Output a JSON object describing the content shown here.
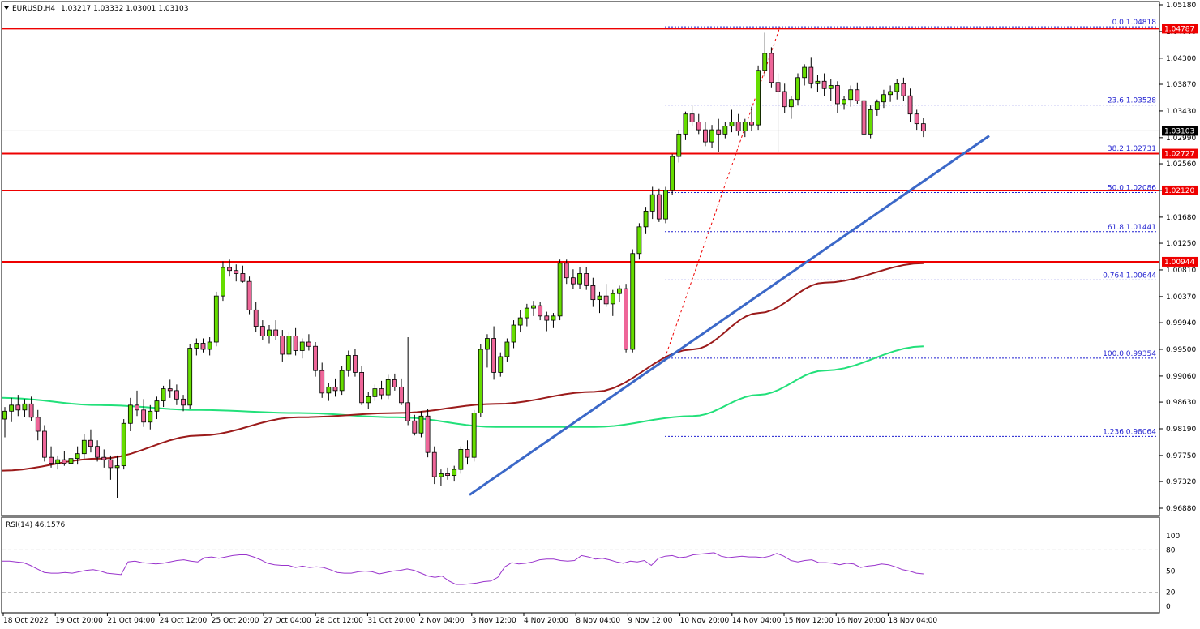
{
  "colors": {
    "background": "#ffffff",
    "bull_candle": "#66dd00",
    "bear_candle": "#ee6699",
    "wick": "#000000",
    "resistance_line": "#ee0000",
    "trend_line": "#3b68c8",
    "ma_fast": "#9b1b1b",
    "ma_slow": "#22e07a",
    "fib": "#1f1fd0",
    "rsi_line": "#9933cc",
    "price_marker_bg": "#000000",
    "level_marker_bg": "#ee0000"
  },
  "chart_data": [
    {
      "type": "candlestick",
      "title": "EURUSD,H4  1.03217 1.03332 1.03001 1.03103",
      "symbol": "EURUSD,H4",
      "ohlc_header": "1.03217 1.03332 1.03001 1.03103",
      "ylim": [
        0.968,
        1.0518
      ],
      "y_ticks": [
        "1.05180",
        "1.04740",
        "1.04300",
        "1.03870",
        "1.03430",
        "1.02990",
        "1.02560",
        "1.02120",
        "1.01680",
        "1.01250",
        "1.00810",
        "1.00370",
        "0.99940",
        "0.99500",
        "0.99060",
        "0.98630",
        "0.98190",
        "0.97750",
        "0.97320",
        "0.96880"
      ],
      "x_ticks": [
        "18 Oct 2022",
        "19 Oct 20:00",
        "21 Oct 04:00",
        "24 Oct 12:00",
        "25 Oct 20:00",
        "27 Oct 04:00",
        "28 Oct 12:00",
        "31 Oct 20:00",
        "2 Nov 04:00",
        "3 Nov 12:00",
        "4 Nov 20:00",
        "8 Nov 04:00",
        "9 Nov 12:00",
        "10 Nov 20:00",
        "14 Nov 04:00",
        "15 Nov 12:00",
        "16 Nov 20:00",
        "18 Nov 04:00"
      ],
      "candles": [
        [
          0.9835,
          0.9855,
          0.9805,
          0.9848
        ],
        [
          0.9848,
          0.987,
          0.983,
          0.9858
        ],
        [
          0.9858,
          0.9875,
          0.984,
          0.985
        ],
        [
          0.985,
          0.9868,
          0.9838,
          0.986
        ],
        [
          0.986,
          0.9872,
          0.9832,
          0.9838
        ],
        [
          0.9838,
          0.985,
          0.98,
          0.9815
        ],
        [
          0.9815,
          0.9825,
          0.9765,
          0.9772
        ],
        [
          0.9772,
          0.979,
          0.9755,
          0.9762
        ],
        [
          0.9762,
          0.9775,
          0.9752,
          0.9768
        ],
        [
          0.9768,
          0.9782,
          0.9758,
          0.9762
        ],
        [
          0.9762,
          0.9778,
          0.9752,
          0.977
        ],
        [
          0.977,
          0.979,
          0.976,
          0.9778
        ],
        [
          0.9778,
          0.981,
          0.977,
          0.98
        ],
        [
          0.98,
          0.9818,
          0.978,
          0.979
        ],
        [
          0.979,
          0.98,
          0.9765,
          0.9772
        ],
        [
          0.9772,
          0.9785,
          0.9755,
          0.9768
        ],
        [
          0.9768,
          0.9775,
          0.9735,
          0.9755
        ],
        [
          0.9755,
          0.9775,
          0.9705,
          0.9758
        ],
        [
          0.9758,
          0.9835,
          0.9752,
          0.9828
        ],
        [
          0.9828,
          0.987,
          0.9815,
          0.9858
        ],
        [
          0.9858,
          0.9882,
          0.984,
          0.985
        ],
        [
          0.985,
          0.9868,
          0.9822,
          0.983
        ],
        [
          0.983,
          0.9858,
          0.9818,
          0.9848
        ],
        [
          0.9848,
          0.9872,
          0.9835,
          0.9865
        ],
        [
          0.9865,
          0.989,
          0.9855,
          0.9885
        ],
        [
          0.9885,
          0.99,
          0.987,
          0.9882
        ],
        [
          0.9882,
          0.9892,
          0.9858,
          0.9868
        ],
        [
          0.9868,
          0.9875,
          0.9848,
          0.9858
        ],
        [
          0.9858,
          0.9958,
          0.9852,
          0.9952
        ],
        [
          0.9952,
          0.9968,
          0.994,
          0.996
        ],
        [
          0.996,
          0.9968,
          0.9945,
          0.995
        ],
        [
          0.995,
          0.997,
          0.994,
          0.9962
        ],
        [
          0.9962,
          1.0045,
          0.9955,
          1.0038
        ],
        [
          1.0038,
          1.0095,
          1.003,
          1.0085
        ],
        [
          1.0085,
          1.0098,
          1.007,
          1.008
        ],
        [
          1.008,
          1.009,
          1.0062,
          1.0075
        ],
        [
          1.0075,
          1.0088,
          1.006,
          1.0062
        ],
        [
          1.0062,
          1.007,
          1.0008,
          1.0015
        ],
        [
          1.0015,
          1.0028,
          0.9978,
          0.9988
        ],
        [
          0.9988,
          0.9998,
          0.9965,
          0.9972
        ],
        [
          0.9972,
          0.999,
          0.996,
          0.9982
        ],
        [
          0.9982,
          0.9998,
          0.9965,
          0.9972
        ],
        [
          0.9972,
          0.9982,
          0.993,
          0.9942
        ],
        [
          0.9942,
          0.9978,
          0.9938,
          0.9972
        ],
        [
          0.9972,
          0.9985,
          0.994,
          0.9948
        ],
        [
          0.9948,
          0.9968,
          0.9935,
          0.9962
        ],
        [
          0.9962,
          0.9975,
          0.9948,
          0.9955
        ],
        [
          0.9955,
          0.9962,
          0.9905,
          0.9915
        ],
        [
          0.9915,
          0.9928,
          0.987,
          0.9878
        ],
        [
          0.9878,
          0.9895,
          0.9865,
          0.9888
        ],
        [
          0.9888,
          0.9902,
          0.9872,
          0.9882
        ],
        [
          0.9882,
          0.9922,
          0.9875,
          0.9915
        ],
        [
          0.9915,
          0.9948,
          0.9905,
          0.994
        ],
        [
          0.994,
          0.995,
          0.9905,
          0.9912
        ],
        [
          0.9912,
          0.9922,
          0.9858,
          0.9862
        ],
        [
          0.9862,
          0.988,
          0.9852,
          0.9872
        ],
        [
          0.9872,
          0.9892,
          0.9865,
          0.9885
        ],
        [
          0.9885,
          0.9898,
          0.9868,
          0.9875
        ],
        [
          0.9875,
          0.9908,
          0.9868,
          0.99
        ],
        [
          0.99,
          0.991,
          0.9882,
          0.9888
        ],
        [
          0.9888,
          0.9902,
          0.9858,
          0.9862
        ],
        [
          0.9862,
          0.997,
          0.9825,
          0.9832
        ],
        [
          0.9832,
          0.9842,
          0.9808,
          0.9812
        ],
        [
          0.9812,
          0.9848,
          0.9805,
          0.984
        ],
        [
          0.984,
          0.9852,
          0.9772,
          0.978
        ],
        [
          0.978,
          0.979,
          0.9728,
          0.974
        ],
        [
          0.974,
          0.9752,
          0.9725,
          0.9745
        ],
        [
          0.9745,
          0.9755,
          0.9735,
          0.9742
        ],
        [
          0.9742,
          0.9758,
          0.9732,
          0.9752
        ],
        [
          0.9752,
          0.979,
          0.9745,
          0.9785
        ],
        [
          0.9785,
          0.98,
          0.976,
          0.9772
        ],
        [
          0.9772,
          0.985,
          0.9765,
          0.9845
        ],
        [
          0.9845,
          0.9958,
          0.9838,
          0.995
        ],
        [
          0.995,
          0.9975,
          0.992,
          0.9968
        ],
        [
          0.9968,
          0.9988,
          0.99,
          0.9912
        ],
        [
          0.9912,
          0.9945,
          0.9905,
          0.9938
        ],
        [
          0.9938,
          0.9968,
          0.993,
          0.9962
        ],
        [
          0.9962,
          0.9998,
          0.9952,
          0.999
        ],
        [
          0.999,
          1.0015,
          0.9978,
          1.0002
        ],
        [
          1.0002,
          1.0025,
          0.9988,
          1.0018
        ],
        [
          1.0018,
          1.003,
          1.0005,
          1.0022
        ],
        [
          1.0022,
          1.0028,
          0.9998,
          1.0005
        ],
        [
          1.0005,
          1.0012,
          0.998,
          0.9998
        ],
        [
          0.9998,
          1.001,
          0.9985,
          1.0005
        ],
        [
          1.0005,
          1.0098,
          0.9998,
          1.0092
        ],
        [
          1.0092,
          1.0098,
          1.0058,
          1.0068
        ],
        [
          1.0068,
          1.0082,
          1.005,
          1.0058
        ],
        [
          1.0058,
          1.0085,
          1.005,
          1.0075
        ],
        [
          1.0075,
          1.0085,
          1.0048,
          1.0055
        ],
        [
          1.0055,
          1.0068,
          1.002,
          1.0032
        ],
        [
          1.0032,
          1.0045,
          1.001,
          1.0038
        ],
        [
          1.0038,
          1.0058,
          1.002,
          1.0025
        ],
        [
          1.0025,
          1.0048,
          1.0005,
          1.0042
        ],
        [
          1.0042,
          1.0055,
          1.0028,
          1.005
        ],
        [
          1.005,
          1.0058,
          0.9945,
          0.995
        ],
        [
          0.995,
          1.0115,
          0.9945,
          1.0108
        ],
        [
          1.0108,
          1.0158,
          1.0098,
          1.0152
        ],
        [
          1.0152,
          1.0185,
          1.014,
          1.0178
        ],
        [
          1.0178,
          1.0218,
          1.0165,
          1.0205
        ],
        [
          1.0205,
          1.0215,
          1.016,
          1.0165
        ],
        [
          1.0165,
          1.0218,
          1.0158,
          1.0212
        ],
        [
          1.0212,
          1.0272,
          1.0205,
          1.0268
        ],
        [
          1.0268,
          1.0312,
          1.0258,
          1.0305
        ],
        [
          1.0305,
          1.0342,
          1.0295,
          1.0338
        ],
        [
          1.0338,
          1.0352,
          1.0318,
          1.0325
        ],
        [
          1.0325,
          1.0338,
          1.0305,
          1.0312
        ],
        [
          1.0312,
          1.0325,
          1.0285,
          1.0292
        ],
        [
          1.0292,
          1.032,
          1.0282,
          1.0312
        ],
        [
          1.0312,
          1.033,
          1.0275,
          1.0305
        ],
        [
          1.0305,
          1.0325,
          1.0298,
          1.0318
        ],
        [
          1.0318,
          1.0345,
          1.0308,
          1.0325
        ],
        [
          1.0325,
          1.0338,
          1.0302,
          1.031
        ],
        [
          1.031,
          1.033,
          1.03,
          1.0325
        ],
        [
          1.0325,
          1.035,
          1.031,
          1.032
        ],
        [
          1.032,
          1.0418,
          1.0312,
          1.041
        ],
        [
          1.041,
          1.0472,
          1.04,
          1.0438
        ],
        [
          1.0438,
          1.0448,
          1.0382,
          1.039
        ],
        [
          1.039,
          1.0405,
          1.0275,
          1.0375
        ],
        [
          1.0375,
          1.0388,
          1.034,
          1.035
        ],
        [
          1.035,
          1.0368,
          1.033,
          1.0362
        ],
        [
          1.0362,
          1.0405,
          1.0352,
          1.0398
        ],
        [
          1.0398,
          1.042,
          1.0385,
          1.0415
        ],
        [
          1.0415,
          1.0432,
          1.038,
          1.0388
        ],
        [
          1.0388,
          1.0402,
          1.0375,
          1.0392
        ],
        [
          1.0392,
          1.0405,
          1.0368,
          1.038
        ],
        [
          1.038,
          1.0395,
          1.036,
          1.0385
        ],
        [
          1.0385,
          1.0392,
          1.034,
          1.0355
        ],
        [
          1.0355,
          1.0368,
          1.0345,
          1.0362
        ],
        [
          1.0362,
          1.0385,
          1.035,
          1.0378
        ],
        [
          1.0378,
          1.039,
          1.0355,
          1.036
        ],
        [
          1.036,
          1.0365,
          1.03,
          1.0305
        ],
        [
          1.0305,
          1.0352,
          1.0298,
          1.0345
        ],
        [
          1.0345,
          1.0362,
          1.0335,
          1.0358
        ],
        [
          1.0358,
          1.0378,
          1.0348,
          1.037
        ],
        [
          1.037,
          1.0385,
          1.0358,
          1.0375
        ],
        [
          1.0375,
          1.0395,
          1.0362,
          1.0388
        ],
        [
          1.0388,
          1.0398,
          1.036,
          1.0368
        ],
        [
          1.0368,
          1.038,
          1.0325,
          1.0338
        ],
        [
          1.0338,
          1.0345,
          1.0312,
          1.0322
        ],
        [
          1.0322,
          1.0332,
          1.03,
          1.031
        ]
      ],
      "horizontal_levels": [
        {
          "label": "1.04787",
          "value": 1.04787
        },
        {
          "label": "1.02727",
          "value": 1.02727
        },
        {
          "label": "1.02120",
          "value": 1.0212
        },
        {
          "label": "1.00944",
          "value": 1.00944
        }
      ],
      "current_price": {
        "label": "1.03103",
        "value": 1.03103
      },
      "fibonacci": [
        {
          "label": "0.0 1.04818",
          "value": 1.04818
        },
        {
          "label": "23.6 1.03528",
          "value": 1.03528
        },
        {
          "label": "38.2 1.02731",
          "value": 1.02731
        },
        {
          "label": "50.0 1.02086",
          "value": 1.02086
        },
        {
          "label": "61.8 1.01441",
          "value": 1.01441
        },
        {
          "label": "0.764 1.00644",
          "value": 1.00644
        },
        {
          "label": "100.0 0.99354",
          "value": 0.99354
        },
        {
          "label": "1.236 0.98064",
          "value": 0.98064
        }
      ],
      "fib_swing": {
        "from_value": 0.99354,
        "to_value": 1.04818
      },
      "trend_line": {
        "start_value": 0.971,
        "end_value": 1.0302
      },
      "ma_fast": [
        [
          0,
          0.975
        ],
        [
          15,
          0.977
        ],
        [
          30,
          0.9808
        ],
        [
          45,
          0.9838
        ],
        [
          60,
          0.9845
        ],
        [
          75,
          0.986
        ],
        [
          90,
          0.988
        ],
        [
          105,
          0.995
        ],
        [
          115,
          1.001
        ],
        [
          125,
          1.006
        ],
        [
          140,
          1.0092
        ]
      ],
      "ma_slow": [
        [
          0,
          0.987
        ],
        [
          15,
          0.9858
        ],
        [
          30,
          0.985
        ],
        [
          45,
          0.9845
        ],
        [
          60,
          0.9838
        ],
        [
          75,
          0.9822
        ],
        [
          90,
          0.9822
        ],
        [
          105,
          0.984
        ],
        [
          115,
          0.9875
        ],
        [
          125,
          0.9915
        ],
        [
          140,
          0.9955
        ]
      ]
    },
    {
      "type": "line",
      "title": "RSI(14) 46.1576",
      "ylim": [
        0,
        100
      ],
      "y_ticks": [
        "100",
        "80",
        "50",
        "20",
        "0"
      ],
      "reference_levels": [
        80,
        50,
        20
      ],
      "values": [
        64,
        64,
        63,
        62,
        58,
        53,
        48,
        47,
        47,
        48,
        47,
        49,
        51,
        52,
        50,
        47,
        46,
        45,
        63,
        64,
        62,
        61,
        60,
        61,
        63,
        65,
        66,
        64,
        63,
        69,
        70,
        68,
        70,
        72,
        73,
        73,
        70,
        66,
        61,
        59,
        58,
        58,
        55,
        57,
        55,
        56,
        55,
        52,
        48,
        47,
        47,
        49,
        50,
        49,
        46,
        48,
        50,
        51,
        53,
        51,
        47,
        43,
        41,
        43,
        36,
        31,
        31,
        32,
        33,
        35,
        36,
        41,
        56,
        62,
        60,
        61,
        63,
        66,
        67,
        67,
        65,
        64,
        65,
        72,
        70,
        67,
        68,
        66,
        63,
        61,
        64,
        63,
        65,
        58,
        68,
        71,
        72,
        69,
        70,
        73,
        74,
        75,
        76,
        71,
        69,
        70,
        71,
        70,
        70,
        69,
        71,
        75,
        71,
        65,
        63,
        65,
        66,
        62,
        62,
        61,
        59,
        61,
        60,
        55,
        57,
        58,
        60,
        59,
        56,
        52,
        50,
        47,
        46
      ]
    }
  ],
  "bottom_axis_date": "18 Oct 2022"
}
